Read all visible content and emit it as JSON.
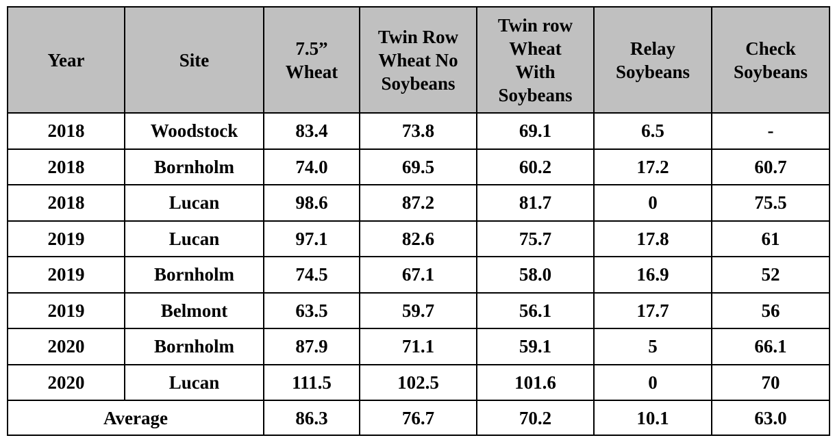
{
  "table": {
    "header": [
      "Year",
      "Site",
      "7.5”\nWheat",
      "Twin Row\nWheat  No\nSoybeans",
      "Twin row\nWheat\nWith\nSoybeans",
      "Relay\nSoybeans",
      "Check\nSoybeans"
    ],
    "rows": [
      [
        "2018",
        "Woodstock",
        "83.4",
        "73.8",
        "69.1",
        "6.5",
        "-"
      ],
      [
        "2018",
        "Bornholm",
        "74.0",
        "69.5",
        "60.2",
        "17.2",
        "60.7"
      ],
      [
        "2018",
        "Lucan",
        "98.6",
        "87.2",
        "81.7",
        "0",
        "75.5"
      ],
      [
        "2019",
        "Lucan",
        "97.1",
        "82.6",
        "75.7",
        "17.8",
        "61"
      ],
      [
        "2019",
        "Bornholm",
        "74.5",
        "67.1",
        "58.0",
        "16.9",
        "52"
      ],
      [
        "2019",
        "Belmont",
        "63.5",
        "59.7",
        "56.1",
        "17.7",
        "56"
      ],
      [
        "2020",
        "Bornholm",
        "87.9",
        "71.1",
        "59.1",
        "5",
        "66.1"
      ],
      [
        "2020",
        "Lucan",
        "111.5",
        "102.5",
        "101.6",
        "0",
        "70"
      ]
    ],
    "average": [
      "Average",
      "86.3",
      "76.7",
      "70.2",
      "10.1",
      "63.0"
    ]
  }
}
